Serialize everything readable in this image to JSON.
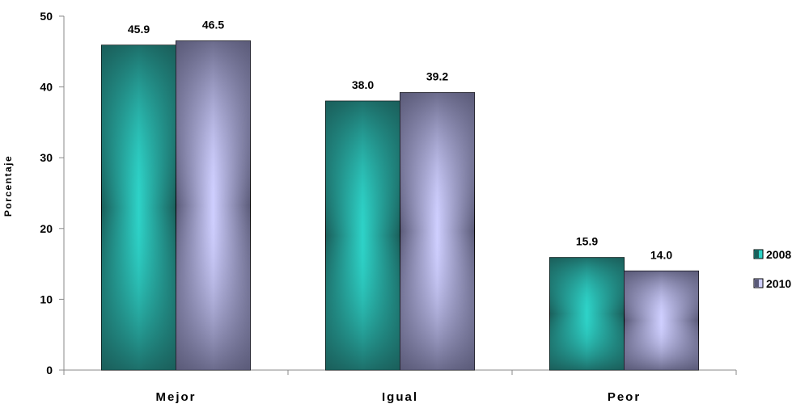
{
  "chart_data": {
    "type": "bar",
    "categories": [
      "Mejor",
      "Igual",
      "Peor"
    ],
    "series": [
      {
        "name": "2008",
        "values": [
          45.9,
          38.0,
          15.9
        ],
        "color_dark": "#1a5e5a",
        "color_light": "#2ed3c8"
      },
      {
        "name": "2010",
        "values": [
          46.5,
          39.2,
          14.0
        ],
        "color_dark": "#5a5a78",
        "color_light": "#cfcfff"
      }
    ],
    "data_labels": [
      [
        "45.9",
        "38.0",
        "15.9"
      ],
      [
        "46.5",
        "39.2",
        "14.0"
      ]
    ],
    "title": "",
    "xlabel": "",
    "ylabel": "Porcentaje",
    "ylim": [
      0,
      50
    ],
    "yticks": [
      0,
      10,
      20,
      30,
      40,
      50
    ],
    "grid": false,
    "legend_position": "right"
  }
}
